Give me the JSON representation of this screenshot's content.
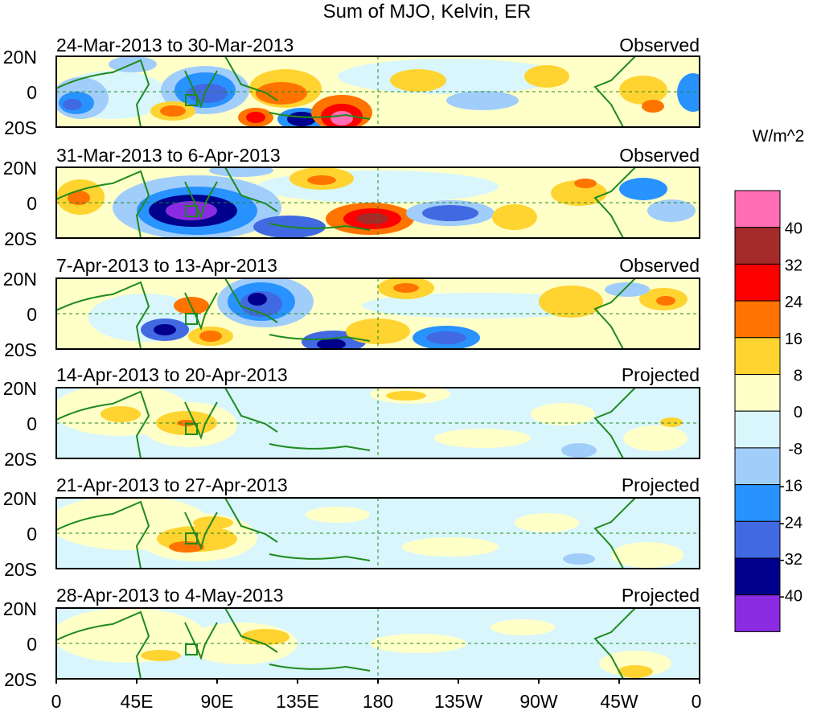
{
  "title": "Sum of MJO, Kelvin, ER",
  "unit_label": "W/m^2",
  "y_ticks": [
    "20N",
    "0",
    "20S"
  ],
  "x_ticks": [
    "0",
    "45E",
    "90E",
    "135E",
    "180",
    "135W",
    "90W",
    "45W",
    "0"
  ],
  "panels": [
    {
      "date_range": "24-Mar-2013 to 30-Mar-2013",
      "status": "Observed"
    },
    {
      "date_range": "31-Mar-2013 to 6-Apr-2013",
      "status": "Observed"
    },
    {
      "date_range": "7-Apr-2013 to 13-Apr-2013",
      "status": "Observed"
    },
    {
      "date_range": "14-Apr-2013 to 20-Apr-2013",
      "status": "Projected"
    },
    {
      "date_range": "21-Apr-2013 to 27-Apr-2013",
      "status": "Projected"
    },
    {
      "date_range": "28-Apr-2013 to 4-May-2013",
      "status": "Projected"
    }
  ],
  "legend": {
    "colors": [
      "#ff6eb4",
      "#a52a2a",
      "#ff0000",
      "#ff7400",
      "#ffd330",
      "#ffffc8",
      "#d8f6fc",
      "#a1cdfb",
      "#2892ff",
      "#4169e1",
      "#00008c",
      "#8a2be2"
    ],
    "labels": [
      "40",
      "32",
      "24",
      "16",
      "8",
      "0",
      "-8",
      "-16",
      "-24",
      "-32",
      "-40"
    ]
  },
  "colors": {
    "coast": "#1f8a1f",
    "frame": "#000000"
  }
}
